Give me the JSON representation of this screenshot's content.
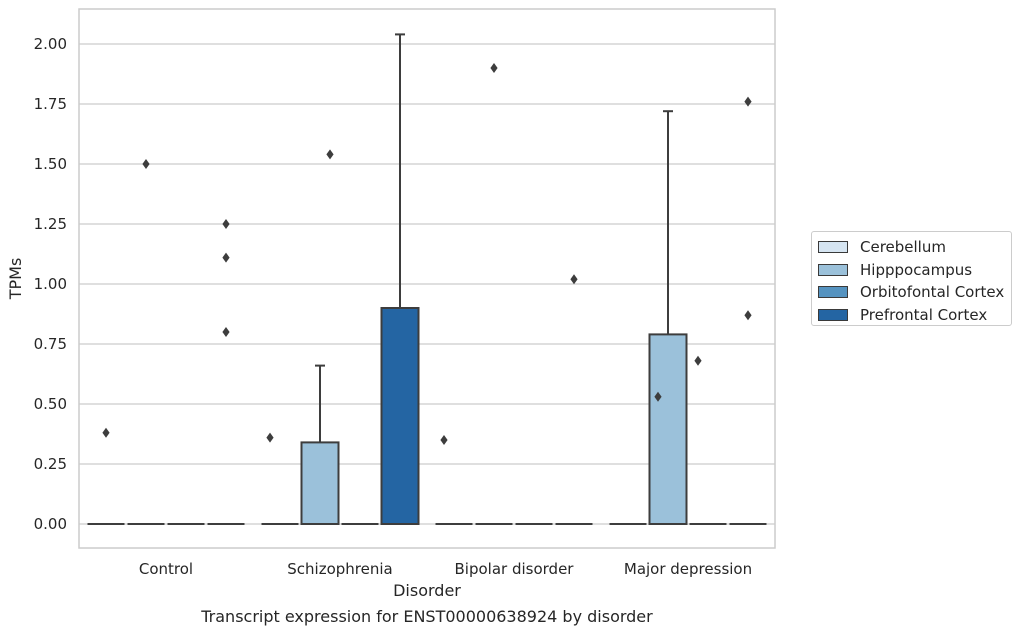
{
  "chart_data": {
    "type": "box",
    "caption": "Transcript expression for ENST00000638924 by disorder",
    "xlabel": "Disorder",
    "ylabel": "TPMs",
    "ylim": [
      -0.1,
      2.15
    ],
    "yticks": [
      "0.00",
      "0.25",
      "0.50",
      "0.75",
      "1.00",
      "1.25",
      "1.50",
      "1.75",
      "2.00"
    ],
    "categories": [
      "Control",
      "Schizophrenia",
      "Bipolar disorder",
      "Major depression"
    ],
    "grid": true,
    "legend_position": "right",
    "series": [
      {
        "name": "Cerebellum",
        "color": "#d6e5f2",
        "boxes": [
          {
            "q1": 0,
            "median": 0,
            "q3": 0,
            "whisker_low": 0,
            "whisker_high": 0,
            "outliers": [
              0.38
            ]
          },
          {
            "q1": 0,
            "median": 0,
            "q3": 0,
            "whisker_low": 0,
            "whisker_high": 0,
            "outliers": []
          },
          {
            "q1": 0,
            "median": 0,
            "q3": 0,
            "whisker_low": 0,
            "whisker_high": 0,
            "outliers": []
          },
          {
            "q1": 0,
            "median": 0,
            "q3": 0,
            "whisker_low": 0,
            "whisker_high": 0,
            "outliers": []
          }
        ]
      },
      {
        "name": "Hipppocampus",
        "color": "#9bc1da",
        "boxes": [
          {
            "q1": 0,
            "median": 0,
            "q3": 0,
            "whisker_low": 0,
            "whisker_high": 0,
            "outliers": [
              1.5
            ]
          },
          {
            "q1": 0,
            "median": 0,
            "q3": 0.34,
            "whisker_low": 0,
            "whisker_high": 0.66,
            "outliers": []
          },
          {
            "q1": 0,
            "median": 0,
            "q3": 0,
            "whisker_low": 0,
            "whisker_high": 0,
            "outliers": [
              1.9
            ]
          },
          {
            "q1": 0,
            "median": 0,
            "q3": 0.79,
            "whisker_low": 0,
            "whisker_high": 1.72,
            "outliers": []
          }
        ]
      },
      {
        "name": "Orbitofontal Cortex",
        "color": "#5593c0",
        "boxes": [
          {
            "q1": 0,
            "median": 0,
            "q3": 0,
            "whisker_low": 0,
            "whisker_high": 0,
            "outliers": []
          },
          {
            "q1": 0,
            "median": 0,
            "q3": 0,
            "whisker_low": 0,
            "whisker_high": 0,
            "outliers": []
          },
          {
            "q1": 0,
            "median": 0,
            "q3": 0,
            "whisker_low": 0,
            "whisker_high": 0,
            "outliers": []
          },
          {
            "q1": 0,
            "median": 0,
            "q3": 0,
            "whisker_low": 0,
            "whisker_high": 0,
            "outliers": []
          }
        ]
      },
      {
        "name": "Prefrontal Cortex",
        "color": "#2465a3",
        "boxes": [
          {
            "q1": 0,
            "median": 0,
            "q3": 0,
            "whisker_low": 0,
            "whisker_high": 0,
            "outliers": [
              0.8,
              1.11,
              1.25
            ]
          },
          {
            "q1": 0,
            "median": 0,
            "q3": 0.9,
            "whisker_low": 0,
            "whisker_high": 2.04,
            "outliers": []
          },
          {
            "q1": 0,
            "median": 0,
            "q3": 0,
            "whisker_low": 0,
            "whisker_high": 0,
            "outliers": [
              1.02
            ]
          },
          {
            "q1": 0,
            "median": 0,
            "q3": 0,
            "whisker_low": 0,
            "whisker_high": 0,
            "outliers": [
              0.87,
              1.76
            ]
          }
        ]
      }
    ],
    "unassigned_outliers": [
      {
        "category": "Schizophrenia",
        "values": [
          1.54,
          0.36
        ]
      },
      {
        "category": "Bipolar disorder",
        "values": [
          0.35
        ]
      },
      {
        "category": "Major depression",
        "values": [
          0.53,
          0.68
        ]
      }
    ]
  }
}
